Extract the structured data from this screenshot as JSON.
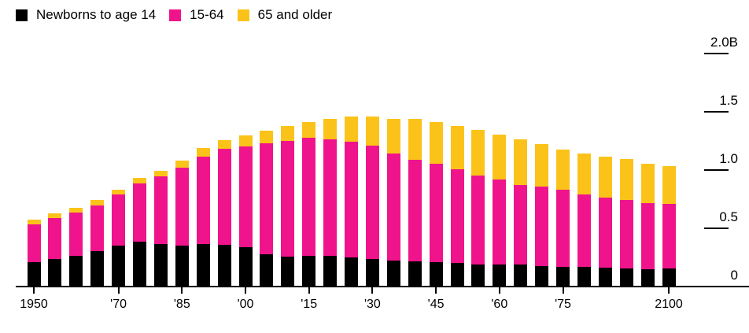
{
  "legend": {
    "items": [
      {
        "label": "Newborns to age 14",
        "color": "#000000"
      },
      {
        "label": "15-64",
        "color": "#f0148c"
      },
      {
        "label": "65 and older",
        "color": "#fbc31a"
      }
    ]
  },
  "y_axis": {
    "ticks": [
      {
        "label": "2.0B",
        "value": 2.0
      },
      {
        "label": "1.5",
        "value": 1.5
      },
      {
        "label": "1.0",
        "value": 1.0
      },
      {
        "label": "0.5",
        "value": 0.5
      },
      {
        "label": "0",
        "value": 0
      }
    ]
  },
  "x_axis": {
    "ticks": [
      {
        "year": 1950,
        "label": "1950"
      },
      {
        "year": 1970,
        "label": "'70"
      },
      {
        "year": 1985,
        "label": "'85"
      },
      {
        "year": 2000,
        "label": "'00"
      },
      {
        "year": 2015,
        "label": "'15"
      },
      {
        "year": 2030,
        "label": "'30"
      },
      {
        "year": 2045,
        "label": "'45"
      },
      {
        "year": 2060,
        "label": "'60"
      },
      {
        "year": 2075,
        "label": "'75"
      },
      {
        "year": 2100,
        "label": "2100"
      }
    ]
  },
  "chart_data": {
    "type": "bar",
    "stacked": true,
    "unit": "billions of people",
    "ylim": [
      0,
      2.0
    ],
    "grid": false,
    "legend_position": "top-left",
    "y_axis_side": "right",
    "categories": [
      1950,
      1955,
      1960,
      1965,
      1970,
      1975,
      1980,
      1985,
      1990,
      1995,
      2000,
      2005,
      2010,
      2015,
      2020,
      2025,
      2030,
      2035,
      2040,
      2045,
      2050,
      2055,
      2060,
      2065,
      2070,
      2075,
      2080,
      2085,
      2090,
      2095,
      2100
    ],
    "series": [
      {
        "name": "Newborns to age 14",
        "color": "#000000",
        "values": [
          0.2,
          0.23,
          0.26,
          0.3,
          0.345,
          0.38,
          0.36,
          0.345,
          0.36,
          0.35,
          0.33,
          0.27,
          0.25,
          0.26,
          0.26,
          0.245,
          0.23,
          0.215,
          0.21,
          0.2,
          0.195,
          0.18,
          0.185,
          0.18,
          0.17,
          0.16,
          0.16,
          0.155,
          0.15,
          0.145,
          0.15
        ]
      },
      {
        "name": "15-64",
        "color": "#f0148c",
        "values": [
          0.33,
          0.35,
          0.37,
          0.39,
          0.44,
          0.5,
          0.58,
          0.67,
          0.75,
          0.825,
          0.865,
          0.95,
          0.995,
          1.01,
          1.0,
          0.995,
          0.97,
          0.92,
          0.87,
          0.845,
          0.805,
          0.765,
          0.725,
          0.685,
          0.68,
          0.665,
          0.625,
          0.605,
          0.59,
          0.565,
          0.555
        ]
      },
      {
        "name": "65 and older",
        "color": "#fbc31a",
        "values": [
          0.035,
          0.04,
          0.04,
          0.045,
          0.04,
          0.045,
          0.05,
          0.06,
          0.07,
          0.075,
          0.095,
          0.11,
          0.125,
          0.135,
          0.17,
          0.21,
          0.25,
          0.3,
          0.35,
          0.36,
          0.37,
          0.39,
          0.385,
          0.39,
          0.365,
          0.345,
          0.35,
          0.35,
          0.35,
          0.34,
          0.325
        ]
      }
    ]
  }
}
